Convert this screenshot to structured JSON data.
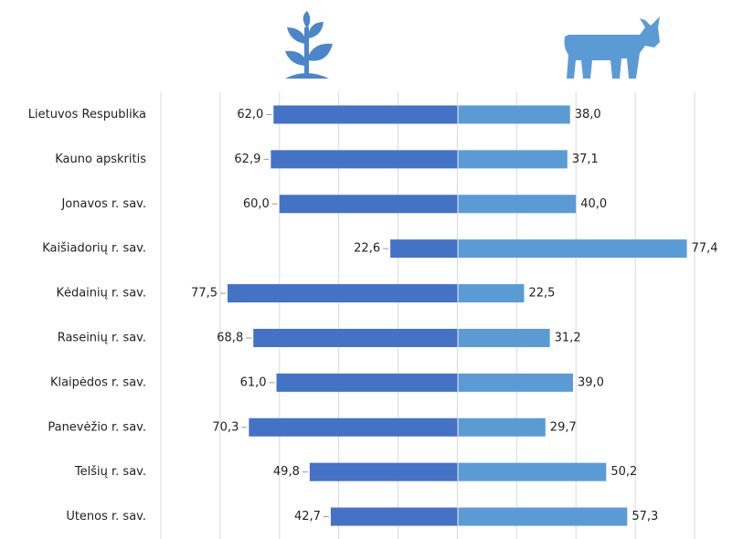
{
  "chart_data": {
    "type": "butterfly",
    "categories": [
      "Lietuvos Respublika",
      "Kauno apskritis",
      "Jonavos r. sav.",
      "Kaišiadorių r. sav.",
      "Kėdainių r. sav.",
      "Raseinių r. sav.",
      "Klaipėdos r. sav.",
      "Panevėžio r. sav.",
      "Telšių r. sav.",
      "Utenos r. sav."
    ],
    "series": [
      {
        "color": "#4472c4",
        "side": "left",
        "values": [
          62.0,
          62.9,
          60.0,
          22.6,
          77.5,
          68.8,
          61.0,
          70.3,
          49.8,
          42.7
        ],
        "value_labels": [
          "62,0",
          "62,9",
          "60,0",
          "22,6",
          "77,5",
          "68,8",
          "61,0",
          "70,3",
          "49,8",
          "42,7"
        ]
      },
      {
        "color": "#5b9bd5",
        "side": "right",
        "values": [
          38.0,
          37.1,
          40.0,
          77.4,
          22.5,
          31.2,
          39.0,
          29.7,
          50.2,
          57.3
        ],
        "value_labels": [
          "38,0",
          "37,1",
          "40,0",
          "77,4",
          "22,5",
          "31,2",
          "39,0",
          "29,7",
          "50,2",
          "57,3"
        ]
      }
    ],
    "xlim": [
      -100,
      80
    ],
    "xticks": [
      -100,
      -80,
      -60,
      -40,
      -20,
      0,
      20,
      40,
      60,
      80
    ],
    "grid": true
  }
}
